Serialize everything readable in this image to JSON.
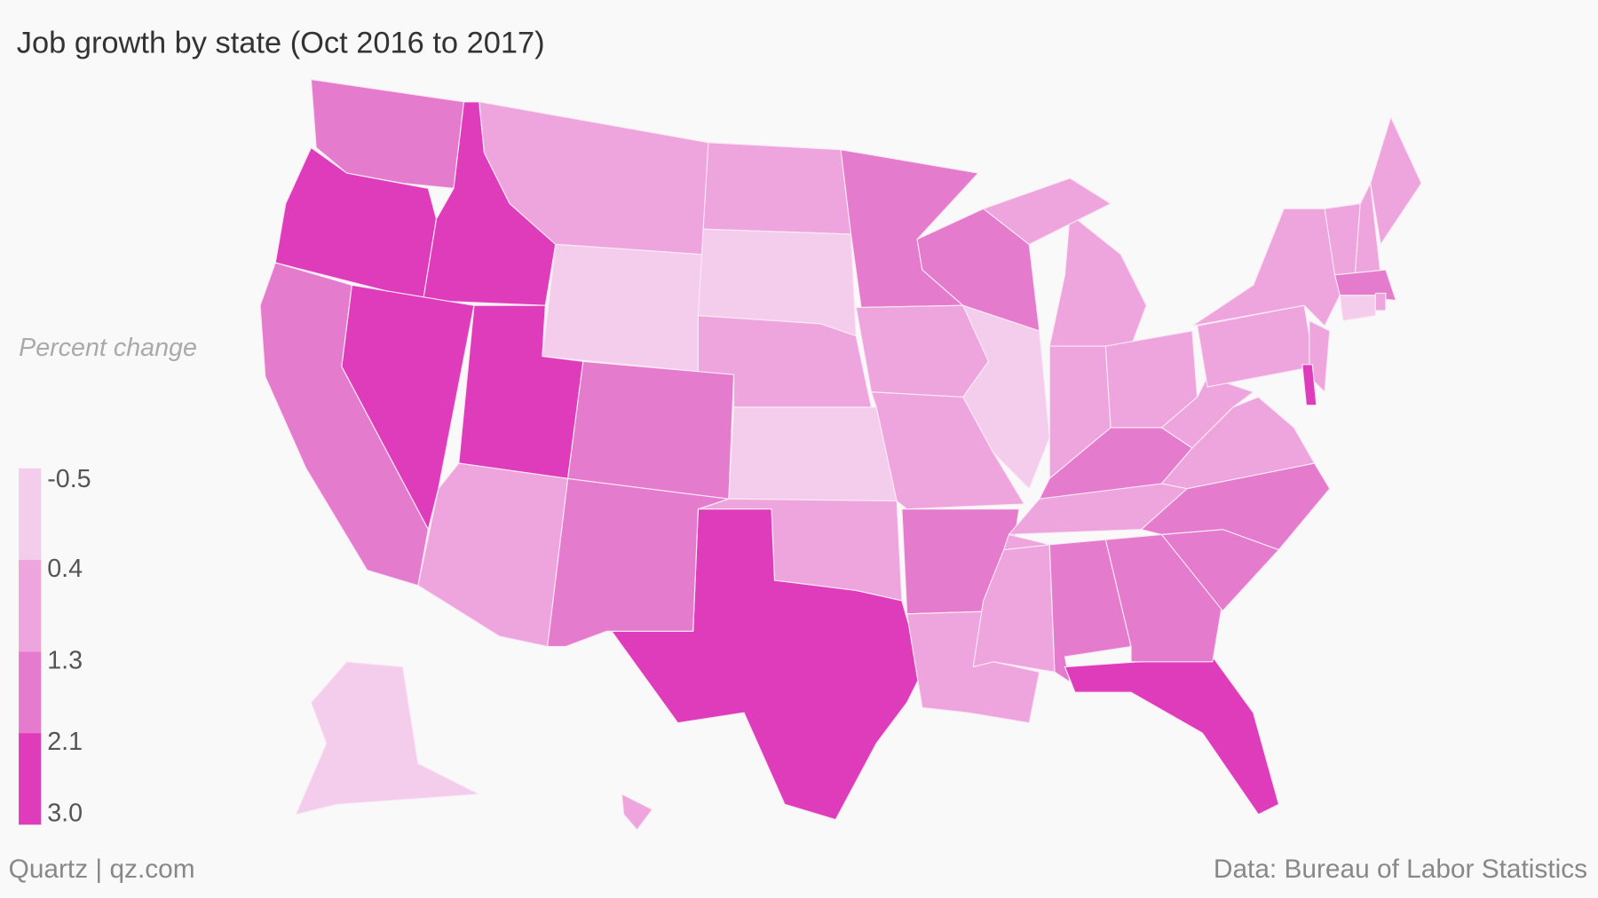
{
  "chart_data": {
    "type": "choropleth",
    "title": "Job growth by state (Oct 2016 to 2017)",
    "legend_title": "Percent change",
    "ylim": [
      -0.5,
      3.0
    ],
    "yticks": [
      -0.5,
      0.4,
      1.3,
      2.1,
      {
        "value": 3.0,
        "label": "3.0"
      }
    ],
    "colors": [
      "#f5cdec",
      "#eea4dc",
      "#e47bcc",
      "#de3cba"
    ],
    "region_classes": [
      2,
      3,
      3,
      1,
      0,
      1,
      0,
      1,
      0,
      1,
      3,
      2,
      2,
      3,
      1,
      3,
      2,
      2,
      1,
      1,
      2,
      1,
      2,
      0,
      1,
      1,
      1,
      1,
      2,
      1,
      1,
      2,
      3,
      2,
      2,
      1,
      1,
      1,
      1,
      1,
      2,
      3,
      1,
      1,
      1,
      2,
      0,
      1,
      1,
      0,
      1
    ],
    "source": "Data: Bureau of Labor Statistics",
    "credit": "Quartz | qz.com"
  }
}
